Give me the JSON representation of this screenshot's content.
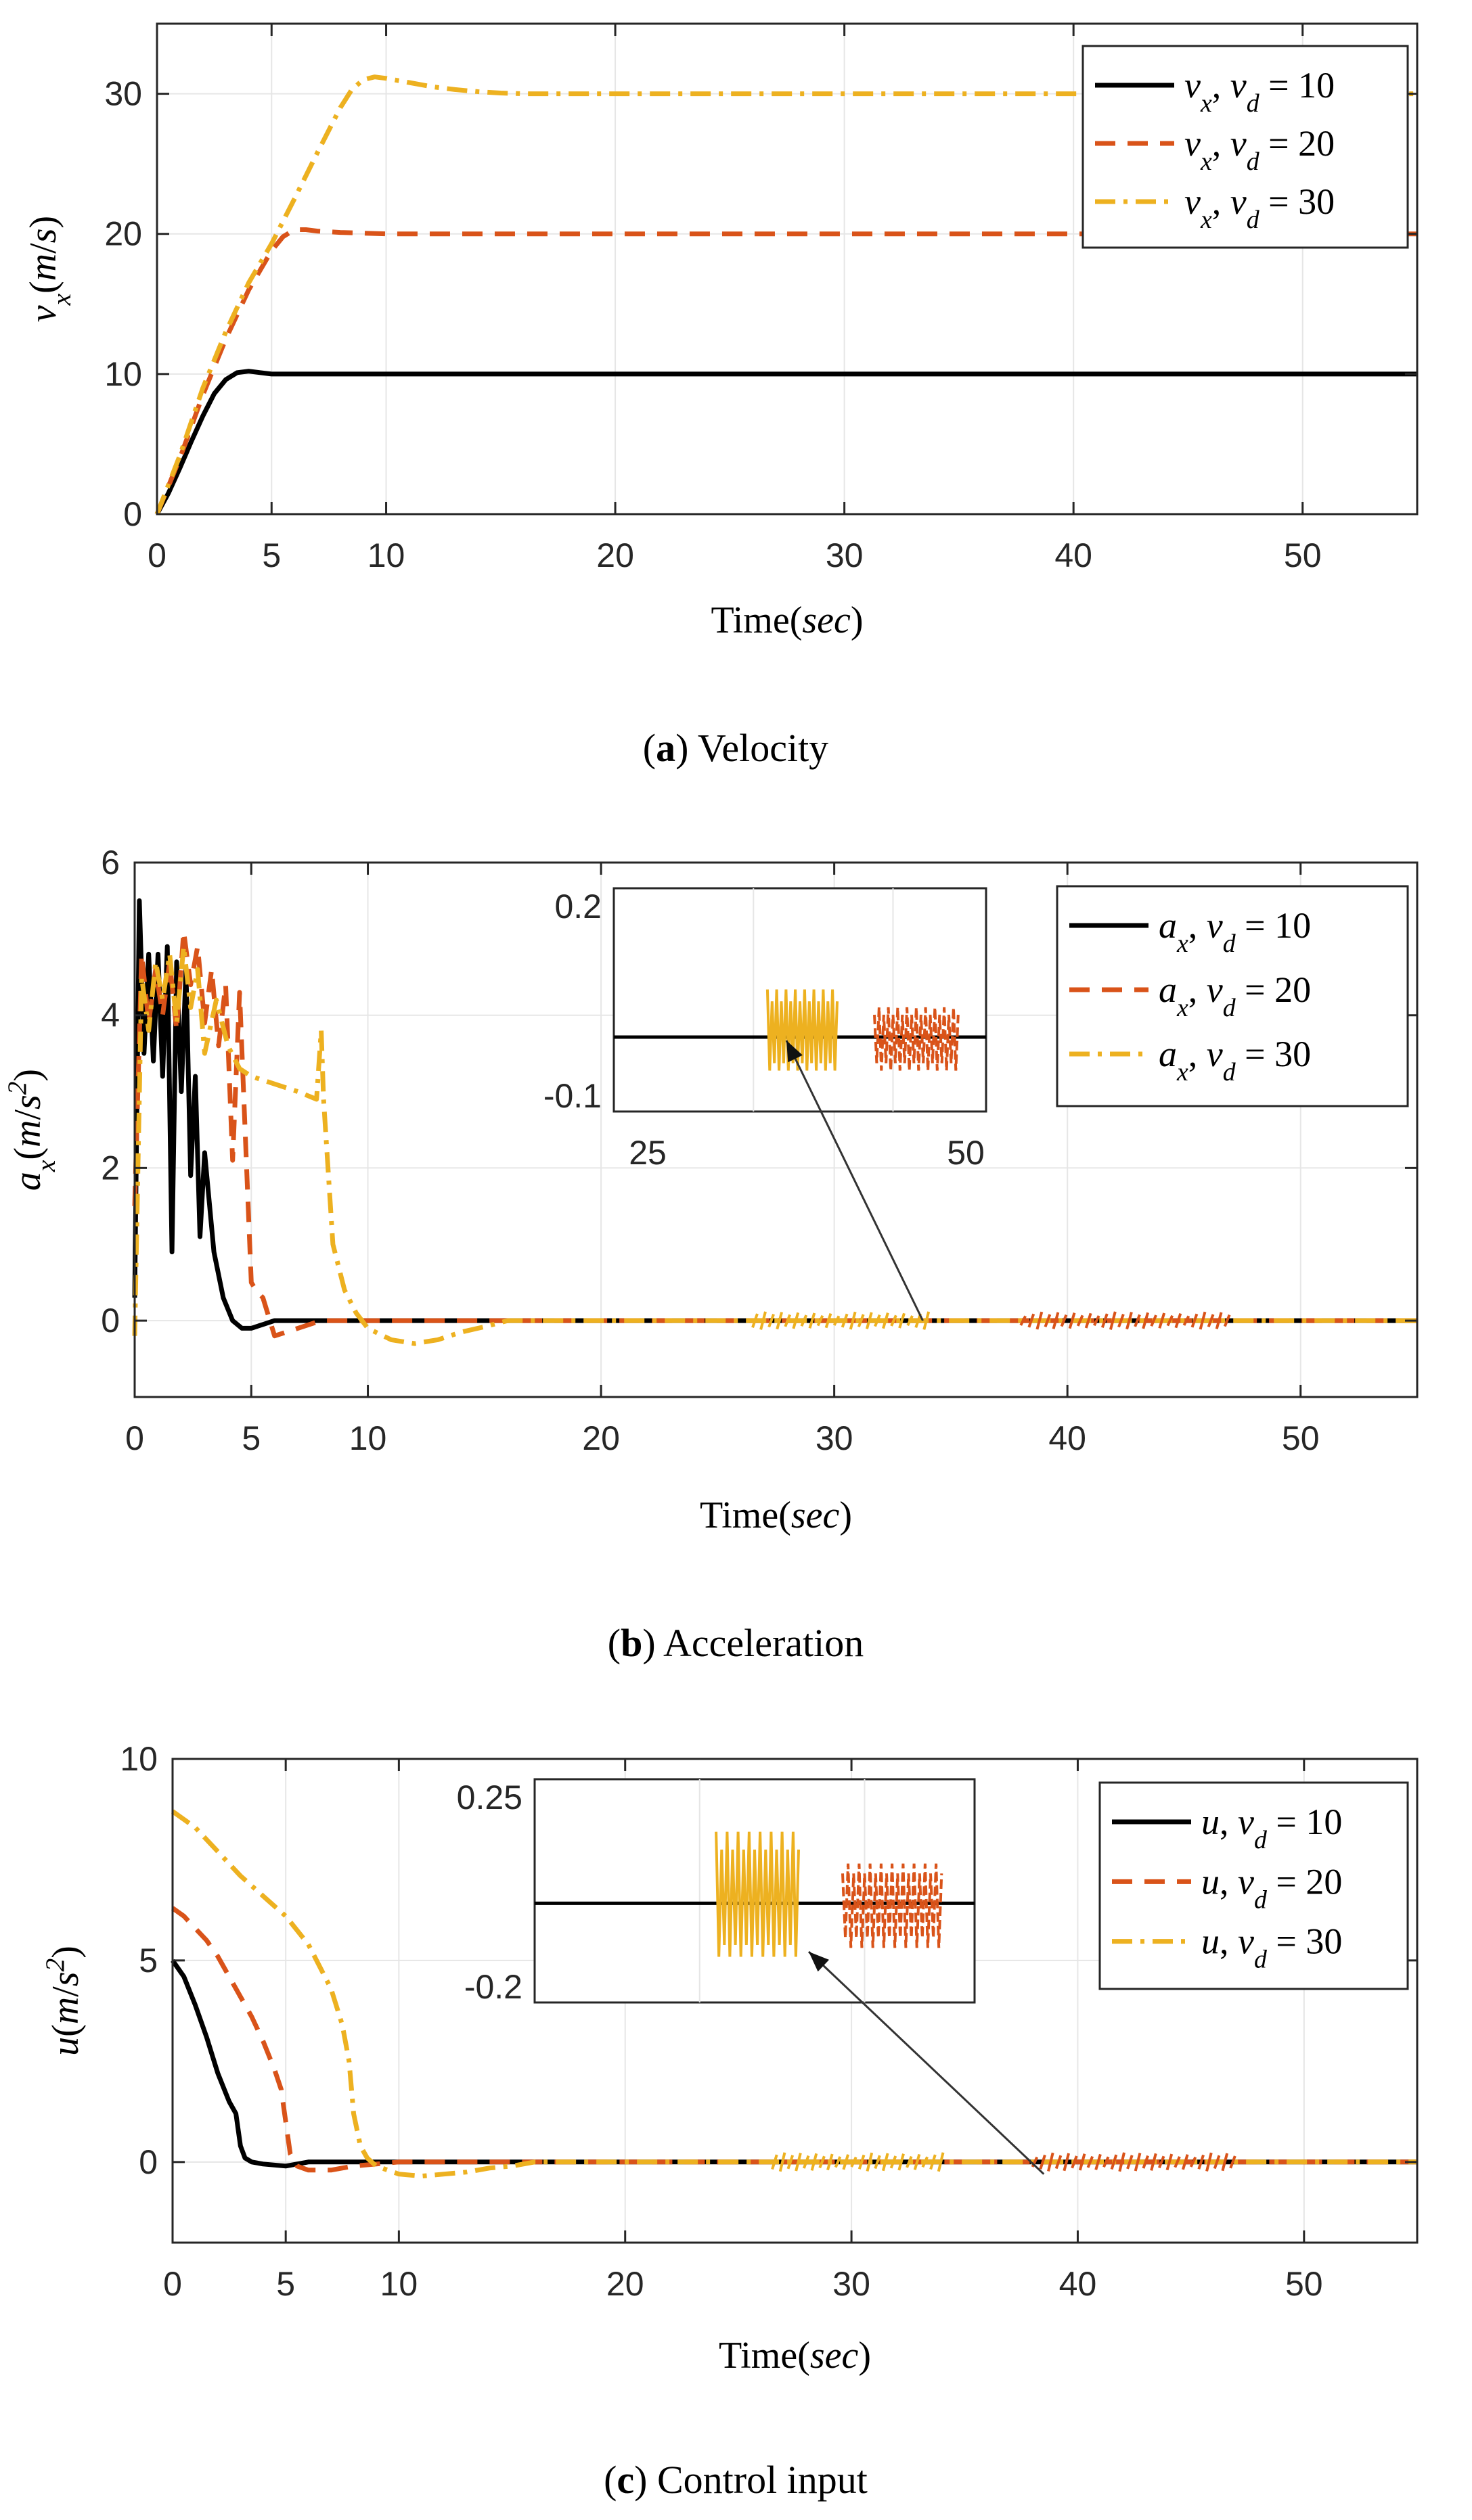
{
  "figure_captions": [
    {
      "letter": "a",
      "text": ") Velocity",
      "open": "("
    },
    {
      "letter": "b",
      "text": ") Acceleration",
      "open": "("
    },
    {
      "letter": "c",
      "text": ") Control input",
      "open": "("
    }
  ],
  "colors": {
    "series_10": "#000000",
    "series_20": "#d95319",
    "series_30": "#edb120",
    "grid": "#e6e6e6",
    "axis": "#262626",
    "arrow": "#333333"
  },
  "chart_data": [
    {
      "type": "line",
      "panel": "a",
      "title": "Velocity",
      "xlabel": "Time(sec)",
      "ylabel": "v_x(m/s)",
      "xlim": [
        0,
        55
      ],
      "ylim": [
        0,
        35
      ],
      "xticks": [
        "0",
        "5",
        "10",
        "20",
        "30",
        "40",
        "50"
      ],
      "yticks": [
        "0",
        "10",
        "20",
        "30"
      ],
      "legend_position": "top-right",
      "series": [
        {
          "name": "v_x, v_d = 10",
          "style": "solid",
          "color_key": "series_10",
          "x": [
            0,
            0.5,
            1,
            1.5,
            2,
            2.5,
            3,
            3.5,
            4,
            4.5,
            5,
            6,
            10,
            20,
            30,
            40,
            50,
            55
          ],
          "y": [
            0,
            1.5,
            3.3,
            5.2,
            7.0,
            8.6,
            9.6,
            10.1,
            10.2,
            10.1,
            10.0,
            10.0,
            10,
            10,
            10,
            10,
            10,
            10
          ]
        },
        {
          "name": "v_x, v_d = 20",
          "style": "dashed",
          "color_key": "series_20",
          "x": [
            0,
            1,
            2,
            3,
            4,
            5,
            5.5,
            6,
            6.5,
            7,
            8,
            10,
            20,
            30,
            40,
            50,
            55
          ],
          "y": [
            0,
            4,
            8.5,
            12.5,
            16,
            18.8,
            19.8,
            20.3,
            20.3,
            20.2,
            20.1,
            20,
            20,
            20,
            20,
            20,
            20
          ]
        },
        {
          "name": "v_x, v_d = 30",
          "style": "dashdot",
          "color_key": "series_30",
          "x": [
            0,
            1,
            2,
            3,
            4,
            5,
            6,
            7,
            8,
            8.5,
            9,
            9.5,
            10,
            11,
            12,
            13,
            14,
            15,
            16,
            20,
            30,
            40,
            50,
            55
          ],
          "y": [
            0,
            4.2,
            9,
            13,
            16.5,
            19.3,
            22.5,
            25.8,
            29,
            30.3,
            31,
            31.2,
            31.1,
            30.8,
            30.5,
            30.3,
            30.15,
            30.05,
            30,
            30,
            30,
            30,
            30,
            30
          ]
        }
      ]
    },
    {
      "type": "line",
      "panel": "b",
      "title": "Acceleration",
      "xlabel": "Time(sec)",
      "ylabel": "a_x(m/s^2)",
      "xlim": [
        0,
        55
      ],
      "ylim": [
        -1,
        6
      ],
      "xticks": [
        "0",
        "5",
        "10",
        "20",
        "30",
        "40",
        "50"
      ],
      "yticks": [
        "0",
        "2",
        "4",
        "6"
      ],
      "legend_position": "top-right",
      "series": [
        {
          "name": "a_x, v_d = 10",
          "style": "solid",
          "color_key": "series_10",
          "x": [
            0,
            0.2,
            0.4,
            0.6,
            0.8,
            1.0,
            1.2,
            1.4,
            1.6,
            1.8,
            2.0,
            2.2,
            2.4,
            2.6,
            2.8,
            3.0,
            3.4,
            3.8,
            4.2,
            4.6,
            5.0,
            5.5,
            6.0,
            7,
            10,
            20,
            30,
            40,
            50,
            55
          ],
          "y": [
            0.3,
            5.5,
            3.5,
            4.8,
            3.4,
            4.8,
            3.2,
            4.9,
            0.9,
            4.7,
            3.0,
            4.6,
            1.9,
            3.2,
            1.1,
            2.2,
            0.9,
            0.3,
            0.0,
            -0.1,
            -0.1,
            -0.05,
            0,
            0,
            0,
            0,
            0,
            0,
            0,
            0
          ]
        },
        {
          "name": "a_x, v_d = 20",
          "style": "dashed",
          "color_key": "series_20",
          "x": [
            0,
            0.3,
            0.6,
            0.9,
            1.2,
            1.5,
            1.8,
            2.1,
            2.4,
            2.7,
            3.0,
            3.3,
            3.6,
            3.9,
            4.2,
            4.5,
            4.8,
            5.0,
            5.2,
            5.5,
            6.0,
            6.5,
            7.0,
            8,
            10,
            15,
            20,
            30,
            40,
            50,
            55
          ],
          "y": [
            1.5,
            4.8,
            3.9,
            4.6,
            4.0,
            4.7,
            3.8,
            5.1,
            4.4,
            4.9,
            3.9,
            4.6,
            3.6,
            4.4,
            2.1,
            4.3,
            2.0,
            0.5,
            0.4,
            0.3,
            -0.2,
            -0.15,
            -0.1,
            0,
            0,
            0,
            0,
            0,
            0,
            0,
            0
          ]
        },
        {
          "name": "a_x, v_d = 30",
          "style": "dashdot",
          "color_key": "series_30",
          "x": [
            0,
            0.3,
            0.6,
            0.9,
            1.2,
            1.5,
            1.8,
            2.1,
            2.4,
            2.7,
            3.0,
            3.5,
            4.0,
            4.5,
            5.0,
            6.0,
            7.0,
            7.8,
            8.0,
            8.1,
            8.5,
            9,
            9.5,
            10,
            11,
            12,
            13,
            14,
            15,
            16,
            20,
            30,
            40,
            50,
            55
          ],
          "y": [
            -0.2,
            4.5,
            3.8,
            4.7,
            4.2,
            4.8,
            3.9,
            4.9,
            4.1,
            4.6,
            3.5,
            4.2,
            3.6,
            3.3,
            3.2,
            3.1,
            3.0,
            2.9,
            3.8,
            2.9,
            1.0,
            0.4,
            0.1,
            -0.1,
            -0.25,
            -0.3,
            -0.25,
            -0.15,
            -0.08,
            0,
            0,
            0,
            0,
            0,
            0
          ]
        }
      ],
      "inset": {
        "xlim": [
          10,
          50
        ],
        "ylim": [
          -0.1,
          0.2
        ],
        "xticks": [
          "25",
          "50"
        ],
        "yticks": [
          "0.2",
          "-0.1"
        ],
        "bands": [
          {
            "color_key": "series_30",
            "x_start": 26.5,
            "x_end": 34,
            "low": -0.05,
            "high": 0.08
          },
          {
            "color_key": "series_20",
            "x_start": 38,
            "x_end": 47,
            "low": -0.05,
            "high": 0.05
          }
        ]
      }
    },
    {
      "type": "line",
      "panel": "c",
      "title": "Control input",
      "xlabel": "Time(sec)",
      "ylabel": "u(m/s^2)",
      "xlim": [
        0,
        55
      ],
      "ylim": [
        -2,
        10
      ],
      "xticks": [
        "0",
        "5",
        "10",
        "20",
        "30",
        "40",
        "50"
      ],
      "yticks": [
        "0",
        "5",
        "10"
      ],
      "legend_position": "top-right",
      "series": [
        {
          "name": "u, v_d = 10",
          "style": "solid",
          "color_key": "series_10",
          "x": [
            0,
            0.5,
            1,
            1.5,
            2,
            2.5,
            2.8,
            3.0,
            3.2,
            3.5,
            4,
            5,
            6,
            10,
            20,
            30,
            40,
            50,
            55
          ],
          "y": [
            5.0,
            4.6,
            3.9,
            3.1,
            2.2,
            1.5,
            1.2,
            0.4,
            0.1,
            0,
            -0.05,
            -0.1,
            0,
            0,
            0,
            0,
            0,
            0,
            0
          ]
        },
        {
          "name": "u, v_d = 20",
          "style": "dashed",
          "color_key": "series_20",
          "x": [
            0,
            0.5,
            1,
            1.5,
            2,
            2.5,
            3,
            3.5,
            4,
            4.5,
            4.8,
            5.0,
            5.2,
            5.5,
            6,
            7,
            8,
            10,
            20,
            30,
            40,
            50,
            55
          ],
          "y": [
            6.3,
            6.1,
            5.8,
            5.5,
            5.1,
            4.6,
            4.1,
            3.6,
            3.0,
            2.3,
            1.8,
            1.0,
            0.2,
            -0.1,
            -0.2,
            -0.2,
            -0.1,
            0,
            0,
            0,
            0,
            0,
            0
          ]
        },
        {
          "name": "u, v_d = 30",
          "style": "dashdot",
          "color_key": "series_30",
          "x": [
            0,
            1,
            2,
            3,
            4,
            5,
            6,
            7,
            7.5,
            7.8,
            8.0,
            8.3,
            8.6,
            9,
            10,
            11,
            12,
            13,
            14,
            15,
            16,
            20,
            30,
            40,
            50,
            55
          ],
          "y": [
            8.7,
            8.3,
            7.7,
            7.1,
            6.6,
            6.1,
            5.4,
            4.3,
            3.4,
            2.5,
            1.2,
            0.4,
            0.1,
            -0.1,
            -0.3,
            -0.35,
            -0.3,
            -0.25,
            -0.15,
            -0.1,
            0,
            0,
            0,
            0,
            0,
            0
          ]
        }
      ],
      "inset": {
        "xlim": [
          10,
          50
        ],
        "ylim": [
          -0.2,
          0.25
        ],
        "xticks": [],
        "yticks": [
          "0.25",
          "-0.2"
        ],
        "bands": [
          {
            "color_key": "series_30",
            "x_start": 26.5,
            "x_end": 34,
            "low": -0.12,
            "high": 0.18
          },
          {
            "color_key": "series_20",
            "x_start": 38,
            "x_end": 47,
            "low": -0.1,
            "high": 0.1
          }
        ]
      }
    }
  ]
}
